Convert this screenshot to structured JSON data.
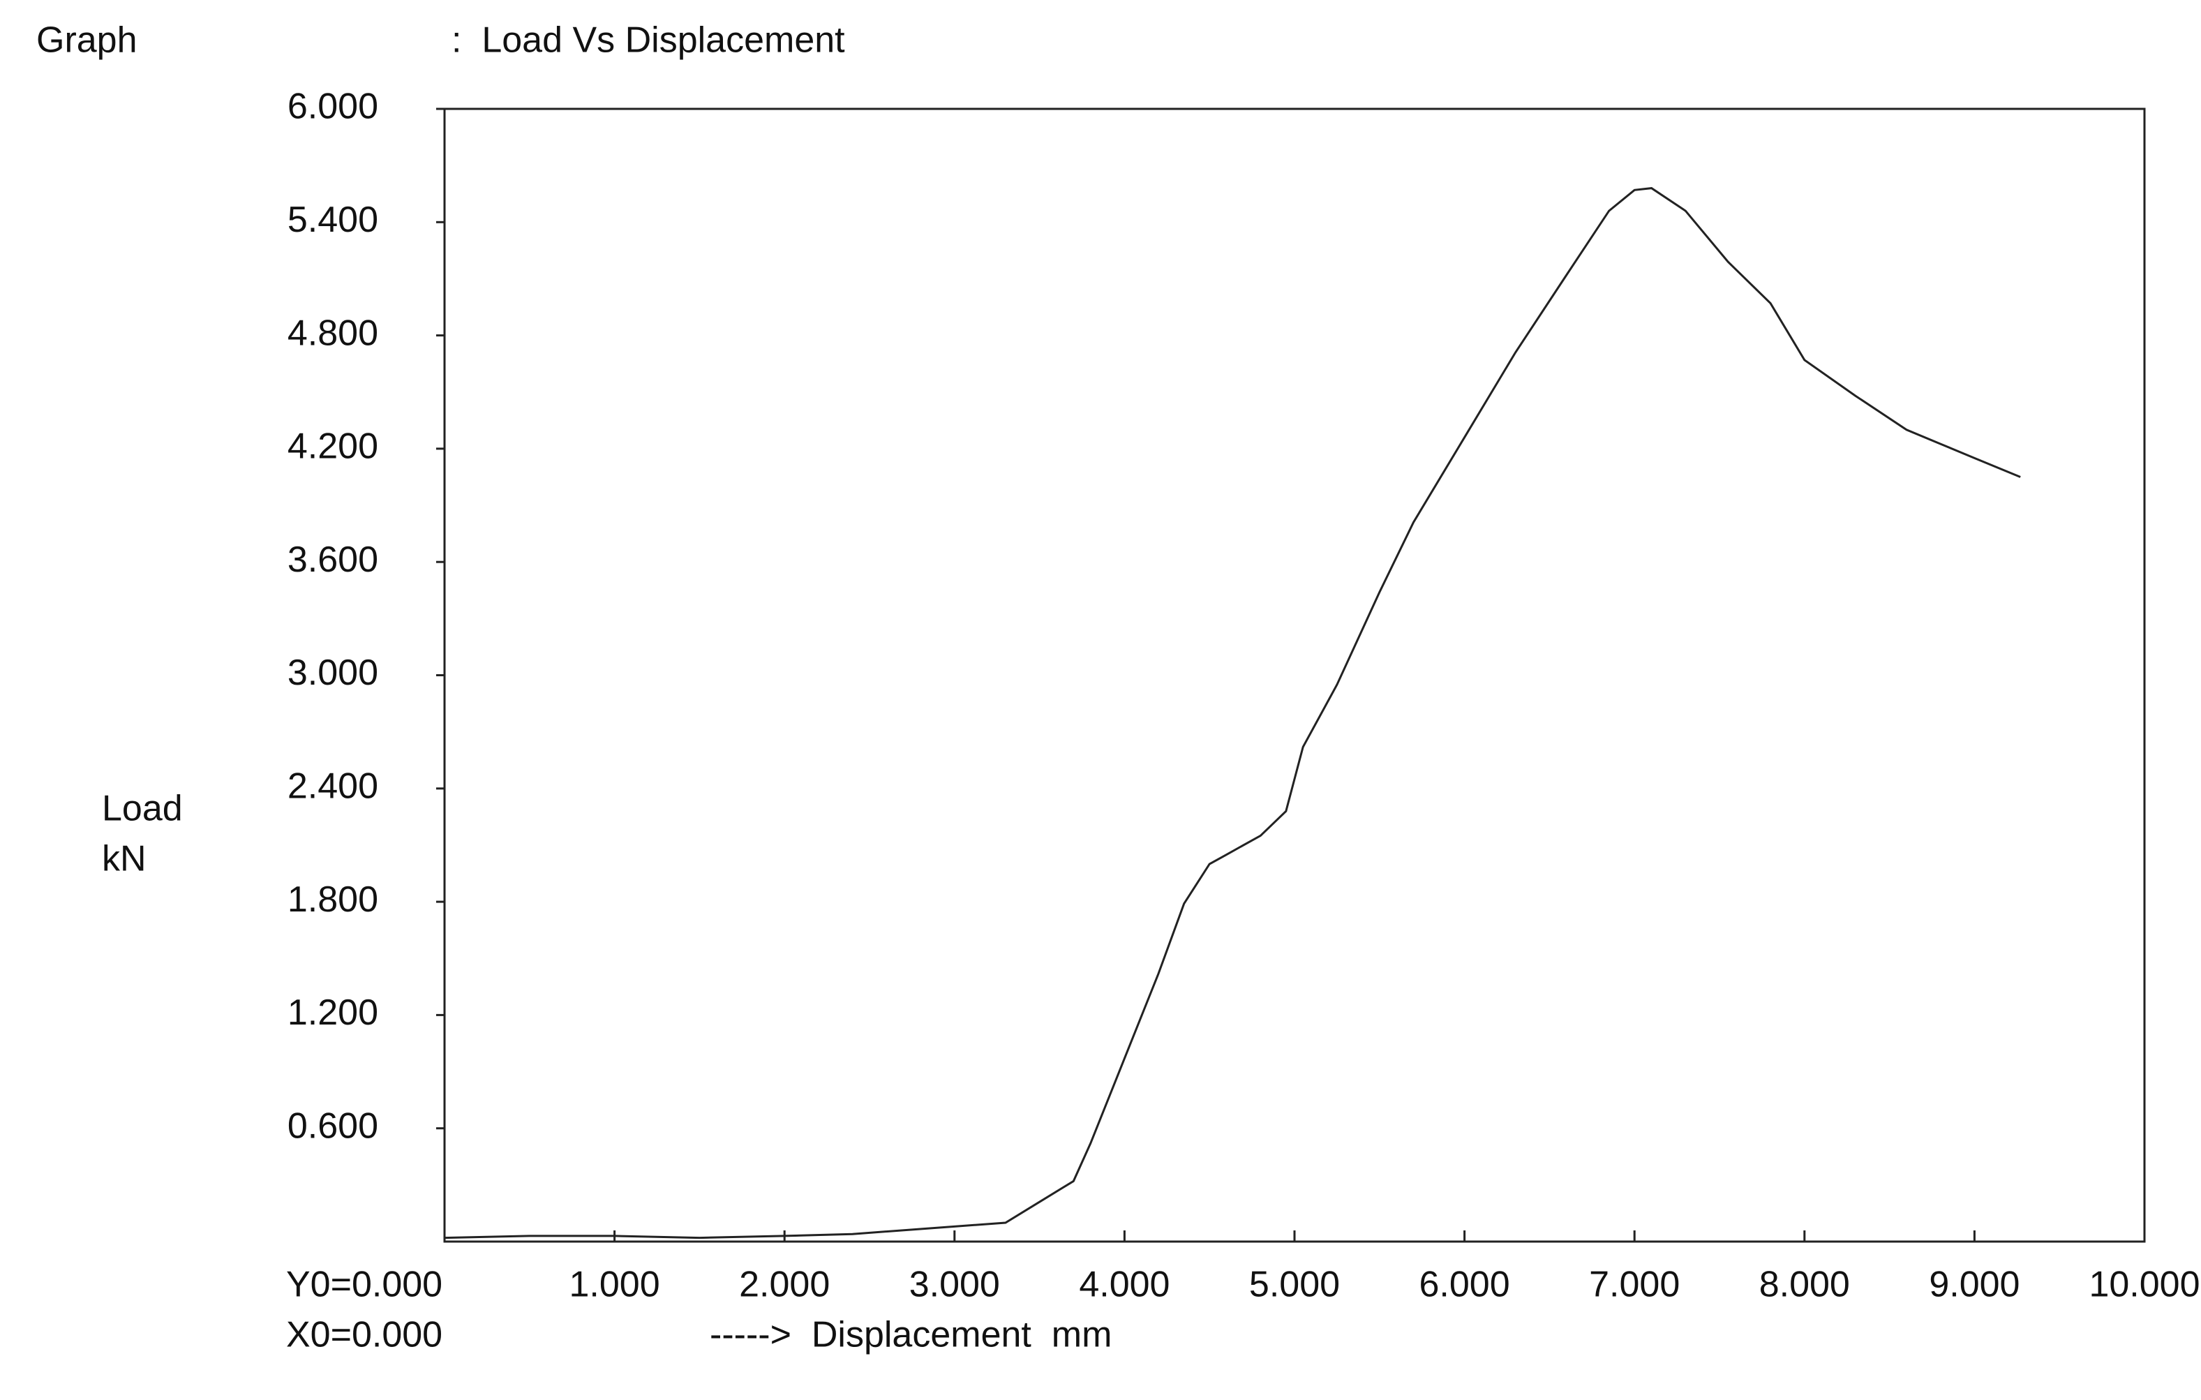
{
  "chart_data": {
    "type": "line",
    "graph_label": "Graph",
    "title": ":  Load Vs Displacement",
    "ylabel": "Load",
    "yunit": "kN",
    "xlabel": "----->  Displacement  mm",
    "annotations": [
      "Y0=0.000",
      "X0=0.000"
    ],
    "xlim": [
      0,
      10
    ],
    "ylim": [
      0,
      6
    ],
    "xticks": [
      {
        "value": 1,
        "label": "1.000"
      },
      {
        "value": 2,
        "label": "2.000"
      },
      {
        "value": 3,
        "label": "3.000"
      },
      {
        "value": 4,
        "label": "4.000"
      },
      {
        "value": 5,
        "label": "5.000"
      },
      {
        "value": 6,
        "label": "6.000"
      },
      {
        "value": 7,
        "label": "7.000"
      },
      {
        "value": 8,
        "label": "8.000"
      },
      {
        "value": 9,
        "label": "9.000"
      },
      {
        "value": 10,
        "label": "10.000"
      }
    ],
    "yticks": [
      {
        "value": 0.6,
        "label": "0.600"
      },
      {
        "value": 1.2,
        "label": "1.200"
      },
      {
        "value": 1.8,
        "label": "1.800"
      },
      {
        "value": 2.4,
        "label": "2.400"
      },
      {
        "value": 3,
        "label": "3.000"
      },
      {
        "value": 3.6,
        "label": "3.600"
      },
      {
        "value": 4.2,
        "label": "4.200"
      },
      {
        "value": 4.8,
        "label": "4.800"
      },
      {
        "value": 5.4,
        "label": "5.400"
      },
      {
        "value": 6,
        "label": "6.000"
      }
    ],
    "grid": false,
    "series": [
      {
        "name": "Load",
        "color": "#222222",
        "x": [
          0,
          0.5,
          1.0,
          1.5,
          2.0,
          2.4,
          3.0,
          3.3,
          3.5,
          3.7,
          3.8,
          4.0,
          4.2,
          4.35,
          4.5,
          4.6,
          4.8,
          4.95,
          5.05,
          5.25,
          5.5,
          5.7,
          6.0,
          6.3,
          6.6,
          6.85,
          7.0,
          7.1,
          7.3,
          7.55,
          7.8,
          8.0,
          8.3,
          8.6,
          9.0,
          9.27
        ],
        "values": [
          0.02,
          0.03,
          0.03,
          0.02,
          0.03,
          0.04,
          0.08,
          0.1,
          0.21,
          0.32,
          0.52,
          0.97,
          1.42,
          1.79,
          2.0,
          2.05,
          2.15,
          2.28,
          2.62,
          2.95,
          3.44,
          3.81,
          4.26,
          4.71,
          5.12,
          5.46,
          5.57,
          5.58,
          5.46,
          5.19,
          4.97,
          4.67,
          4.48,
          4.3,
          4.15,
          4.05
        ]
      }
    ]
  }
}
